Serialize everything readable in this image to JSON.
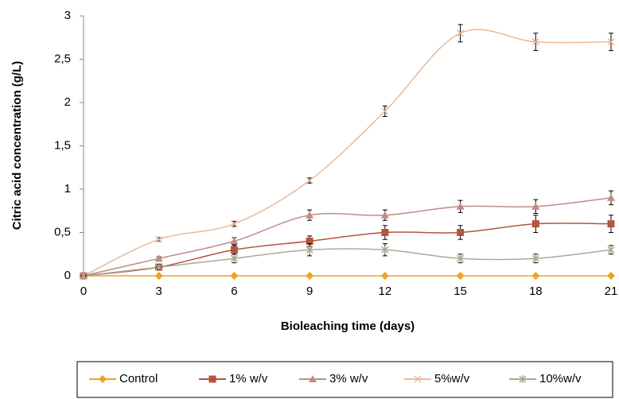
{
  "chart_data": {
    "type": "line",
    "x_label": "Bioleaching time (days)",
    "y_label": "Citric acid concentration  (g/L)",
    "x": [
      0,
      3,
      6,
      9,
      12,
      15,
      18,
      21
    ],
    "xlim": [
      0,
      21
    ],
    "xticks": [
      0,
      3,
      6,
      9,
      12,
      15,
      18,
      21
    ],
    "ylim": [
      0,
      3
    ],
    "yticks": [
      0,
      {
        "value": 0.5,
        "label": "0,5"
      },
      1,
      {
        "value": 1.5,
        "label": "1,5"
      },
      2,
      {
        "value": 2.5,
        "label": "2,5"
      },
      3
    ],
    "grid": false,
    "smooth": true,
    "legend": "bottom",
    "series": [
      {
        "name": "Control",
        "color": "#f0a224",
        "marker": "diamond",
        "values": [
          0,
          0,
          0,
          0,
          0,
          0,
          0,
          0
        ],
        "errors": [
          0,
          0,
          0,
          0,
          0,
          0,
          0,
          0
        ]
      },
      {
        "name": "1% w/v",
        "color": "#b4553d",
        "marker": "square",
        "values": [
          0,
          0.1,
          0.3,
          0.4,
          0.5,
          0.5,
          0.6,
          0.6
        ],
        "errors": [
          0.01,
          0.02,
          0.05,
          0.06,
          0.08,
          0.08,
          0.1,
          0.1
        ]
      },
      {
        "name": "3% w/v",
        "color": "#c08c88",
        "marker": "triangle",
        "values": [
          0,
          0.2,
          0.4,
          0.7,
          0.7,
          0.8,
          0.8,
          0.9
        ],
        "errors": [
          0.01,
          0.02,
          0.04,
          0.06,
          0.06,
          0.07,
          0.08,
          0.08
        ]
      },
      {
        "name": "5%w/v",
        "color": "#e9b99a",
        "marker": "x",
        "values": [
          0,
          0.42,
          0.6,
          1.1,
          1.9,
          2.8,
          2.7,
          2.7
        ],
        "errors": [
          0.01,
          0.02,
          0.03,
          0.03,
          0.06,
          0.1,
          0.1,
          0.1
        ]
      },
      {
        "name": "10%w/v",
        "color": "#a9a994",
        "marker": "asterisk",
        "values": [
          0,
          0.1,
          0.2,
          0.3,
          0.3,
          0.2,
          0.2,
          0.3
        ],
        "errors": [
          0.01,
          0.03,
          0.05,
          0.07,
          0.07,
          0.05,
          0.05,
          0.05
        ]
      }
    ]
  }
}
